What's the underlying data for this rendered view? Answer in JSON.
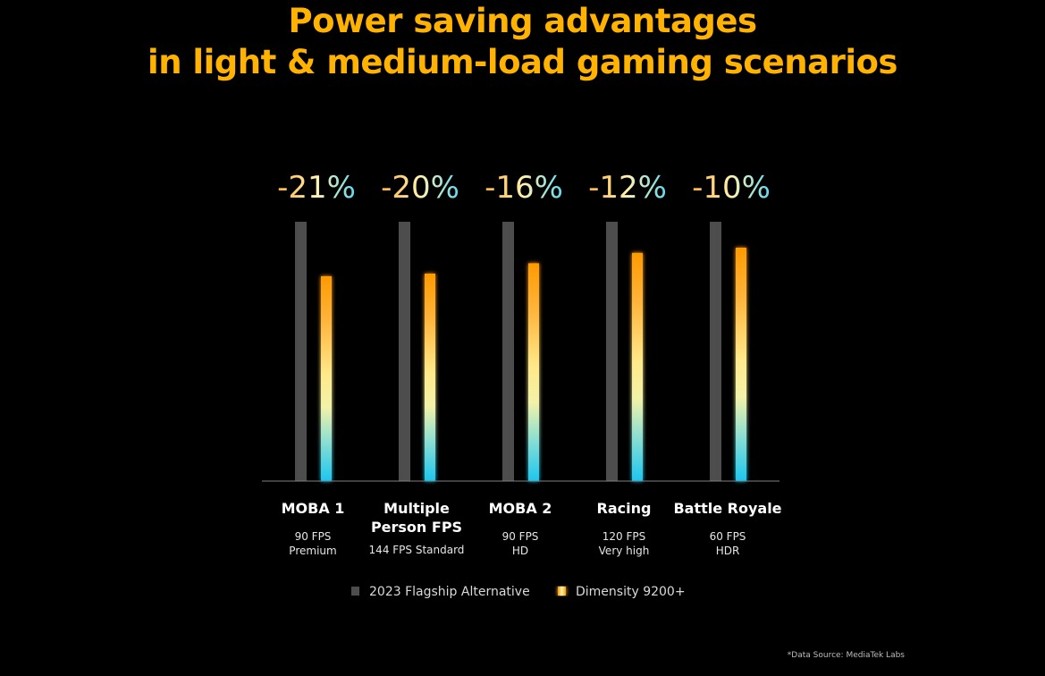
{
  "title": {
    "line1": "Power saving advantages",
    "line2": "in light & medium-load gaming scenarios"
  },
  "source_note": "*Data Source: MediaTek Labs",
  "colors": {
    "title": "#ffb300",
    "alternative_bar": "#4d4d4d",
    "dimensity_gradient": [
      "#ff9a00",
      "#ffe98a",
      "#1cc6f0"
    ],
    "percent_gradient": [
      "#ffb040",
      "#fff2b0",
      "#5fd8f0"
    ],
    "baseline": "#808080"
  },
  "chart_data": {
    "type": "bar",
    "categories": [
      "MOBA 1",
      "Multiple Person FPS",
      "MOBA 2",
      "Racing",
      "Battle Royale"
    ],
    "category_labels": [
      {
        "name_lines": [
          "MOBA 1"
        ],
        "sub_lines": [
          "90 FPS",
          "Premium"
        ]
      },
      {
        "name_lines": [
          "Multiple",
          "Person FPS"
        ],
        "sub_lines": [
          "144 FPS Standard"
        ]
      },
      {
        "name_lines": [
          "MOBA 2"
        ],
        "sub_lines": [
          "90 FPS",
          "HD"
        ]
      },
      {
        "name_lines": [
          "Racing"
        ],
        "sub_lines": [
          "120 FPS",
          "Very high"
        ]
      },
      {
        "name_lines": [
          "Battle Royale"
        ],
        "sub_lines": [
          "60 FPS",
          "HDR"
        ]
      }
    ],
    "series": [
      {
        "name": "2023 Flagship Alternative",
        "values": [
          100,
          100,
          100,
          100,
          100
        ]
      },
      {
        "name": "Dimensity 9200+",
        "values": [
          79,
          80,
          84,
          88,
          90
        ]
      }
    ],
    "annotations": [
      "-21%",
      "-20%",
      "-16%",
      "-12%",
      "-10%"
    ],
    "ylim": [
      0,
      100
    ],
    "legend_position": "bottom",
    "grid": false
  }
}
